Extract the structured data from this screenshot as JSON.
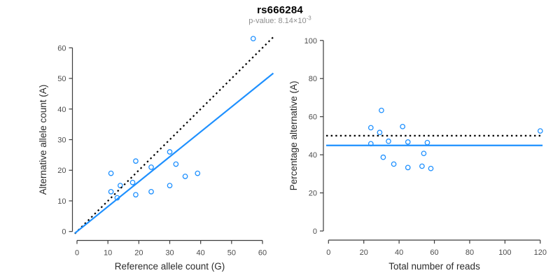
{
  "title": "rs666284",
  "subtitle": {
    "label": "p-value: ",
    "mantissa": "8.14×10",
    "exponent": "-3"
  },
  "colors": {
    "accent_blue": "#1E90FF",
    "line_black": "#000000",
    "axis": "#3c3c3c",
    "tick_text": "#4d4d4d",
    "label_text": "#2b2b2b",
    "subtitle_gray": "#8e8e8e",
    "background": "#ffffff"
  },
  "chart_data": [
    {
      "type": "scatter",
      "name": "allele-counts",
      "xlabel": "Reference allele count (G)",
      "ylabel": "Alternative allele count (A)",
      "xlim": [
        0,
        60
      ],
      "ylim": [
        0,
        60
      ],
      "xticks": [
        0,
        10,
        20,
        30,
        40,
        50,
        60
      ],
      "yticks": [
        0,
        10,
        20,
        30,
        40,
        50,
        60
      ],
      "grid": false,
      "marker": "open-circle",
      "points": [
        [
          57,
          63
        ],
        [
          30,
          26
        ],
        [
          19,
          23
        ],
        [
          32,
          22
        ],
        [
          24,
          21
        ],
        [
          11,
          19
        ],
        [
          39,
          19
        ],
        [
          35,
          18
        ],
        [
          18,
          16
        ],
        [
          14,
          15
        ],
        [
          30,
          15
        ],
        [
          11,
          13
        ],
        [
          24,
          13
        ],
        [
          19,
          12
        ],
        [
          13,
          11
        ]
      ],
      "lines": [
        {
          "name": "identity",
          "slope": 1,
          "intercept": 0,
          "style": "dotted",
          "color": "black"
        },
        {
          "name": "fit",
          "slope": 0.814,
          "intercept": 0,
          "style": "solid",
          "color": "blue"
        }
      ]
    },
    {
      "type": "scatter",
      "name": "percentage-vs-depth",
      "xlabel": "Total number of reads",
      "ylabel": "Percentage alternative (A)",
      "xlim": [
        0,
        120
      ],
      "ylim": [
        0,
        100
      ],
      "xticks": [
        0,
        20,
        40,
        60,
        80,
        100,
        120
      ],
      "yticks": [
        0,
        20,
        40,
        60,
        80,
        100
      ],
      "grid": false,
      "marker": "open-circle",
      "points": [
        [
          120,
          52.5
        ],
        [
          56,
          46.4
        ],
        [
          42,
          54.8
        ],
        [
          54,
          40.7
        ],
        [
          45,
          46.7
        ],
        [
          30,
          63.3
        ],
        [
          58,
          32.8
        ],
        [
          53,
          34.0
        ],
        [
          34,
          47.1
        ],
        [
          29,
          51.7
        ],
        [
          45,
          33.3
        ],
        [
          24,
          54.2
        ],
        [
          37,
          35.1
        ],
        [
          31,
          38.7
        ],
        [
          24,
          45.8
        ]
      ],
      "lines": [
        {
          "name": "expected-50pct",
          "slope": 0,
          "intercept": 50,
          "style": "dotted",
          "color": "black"
        },
        {
          "name": "observed-mean",
          "slope": 0,
          "intercept": 44.9,
          "style": "solid",
          "color": "blue"
        }
      ]
    }
  ]
}
